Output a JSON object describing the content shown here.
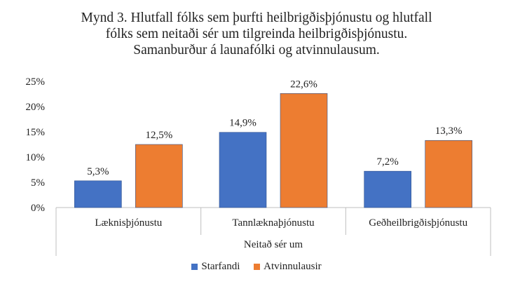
{
  "chart_data": {
    "type": "bar",
    "title_lines": [
      "Mynd 3. Hlutfall fólks sem þurfti heilbrigðisþjónustu og hlutfall",
      "fólks sem neitaði sér um tilgreinda heilbrigðisþjónustu.",
      "Samanburður á launafólki og atvinnulausum."
    ],
    "xlabel": "Neitað sér um",
    "ylabel": "",
    "categories": [
      "Læknisþjónustu",
      "Tannlæknaþjónustu",
      "Geðheilbrigðisþjónustu"
    ],
    "series": [
      {
        "name": "Starfandi",
        "color": "#4472C4",
        "values": [
          5.3,
          14.9,
          7.2
        ],
        "labels": [
          "5,3%",
          "14,9%",
          "7,2%"
        ]
      },
      {
        "name": "Atvinnulausir",
        "color": "#ED7D31",
        "values": [
          12.5,
          22.6,
          13.3
        ],
        "labels": [
          "12,5%",
          "22,6%",
          "13,3%"
        ]
      }
    ],
    "ylim": [
      0,
      25
    ],
    "yticks": [
      0,
      5,
      10,
      15,
      20,
      25
    ],
    "ytick_labels": [
      "0%",
      "5%",
      "10%",
      "15%",
      "20%",
      "25%"
    ],
    "grid": false,
    "legend_position": "bottom"
  }
}
